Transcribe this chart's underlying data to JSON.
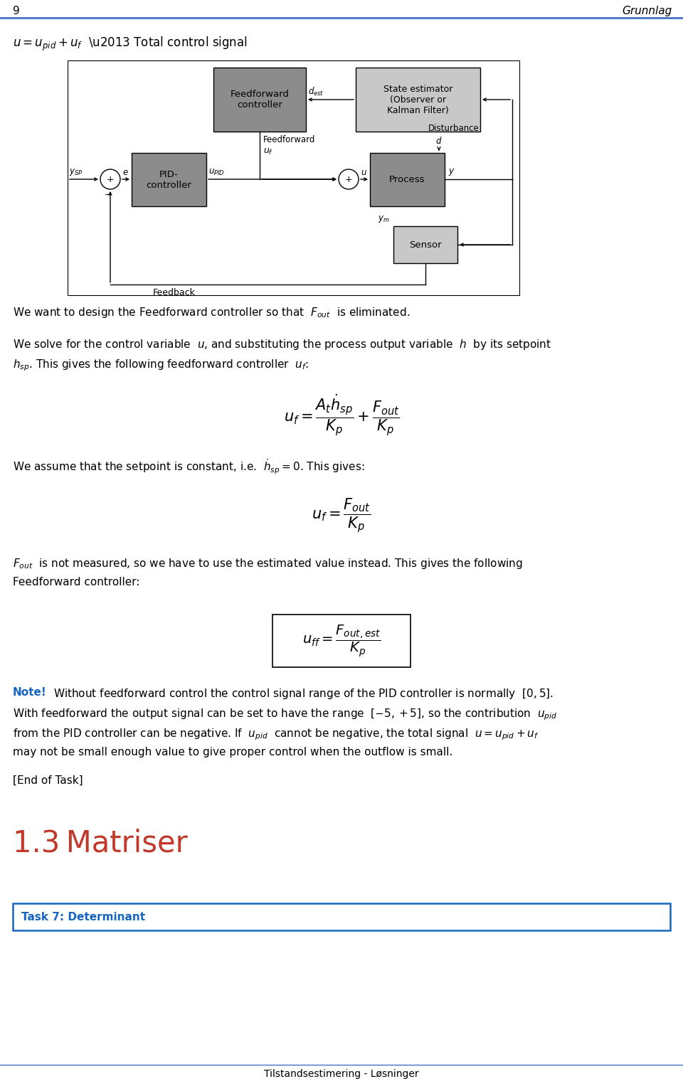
{
  "page_number": "9",
  "page_header_right": "Grunnlag",
  "header_line_color": "#4472c4",
  "footer_text": "Tilstandsestimering - Løsninger",
  "footer_line_color": "#4472c4",
  "bg_color": "#ffffff",
  "text_color": "#000000",
  "note_color": "#1565c0",
  "section_color": "#c0392b",
  "task_box_color": "#1565c0",
  "ff_box_color": "#8c8c8c",
  "se_box_color": "#c8c8c8",
  "pid_box_color": "#8c8c8c",
  "proc_box_color": "#8c8c8c",
  "sensor_box_color": "#c8c8c8"
}
